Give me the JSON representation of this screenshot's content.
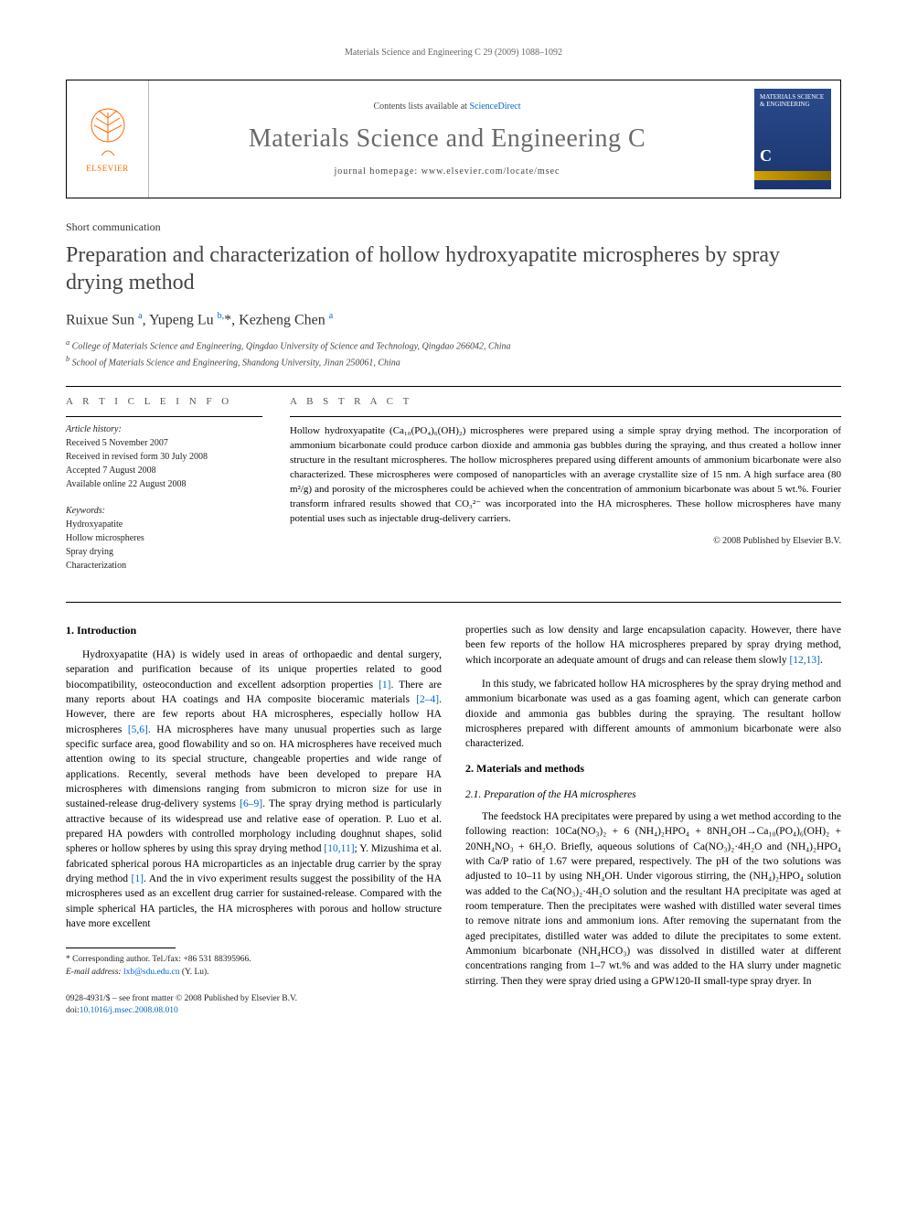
{
  "running_header": "Materials Science and Engineering C 29 (2009) 1088–1092",
  "masthead": {
    "contents_prefix": "Contents lists available at ",
    "contents_link": "ScienceDirect",
    "journal_name": "Materials Science and Engineering C",
    "homepage_prefix": "journal homepage: ",
    "homepage": "www.elsevier.com/locate/msec",
    "elsevier": "ELSEVIER",
    "cover_title": "MATERIALS SCIENCE & ENGINEERING",
    "cover_c": "C"
  },
  "article_type": "Short communication",
  "title": "Preparation and characterization of hollow hydroxyapatite microspheres by spray drying method",
  "authors_html": "Ruixue Sun <sup>a</sup>, Yupeng Lu <sup>b,</sup><span class='star'>*</span>, Kezheng Chen <sup>a</sup>",
  "affiliations": {
    "a": "College of Materials Science and Engineering, Qingdao University of Science and Technology, Qingdao 266042, China",
    "b": "School of Materials Science and Engineering, Shandong University, Jinan 250061, China"
  },
  "info": {
    "heading": "A R T I C L E   I N F O",
    "history_label": "Article history:",
    "received": "Received 5 November 2007",
    "revised": "Received in revised form 30 July 2008",
    "accepted": "Accepted 7 August 2008",
    "online": "Available online 22 August 2008",
    "keywords_label": "Keywords:",
    "kw1": "Hydroxyapatite",
    "kw2": "Hollow microspheres",
    "kw3": "Spray drying",
    "kw4": "Characterization"
  },
  "abstract": {
    "heading": "A B S T R A C T",
    "text": "Hollow hydroxyapatite (Ca₁₀(PO₄)₆(OH)₂) microspheres were prepared using a simple spray drying method. The incorporation of ammonium bicarbonate could produce carbon dioxide and ammonia gas bubbles during the spraying, and thus created a hollow inner structure in the resultant microspheres. The hollow microspheres prepared using different amounts of ammonium bicarbonate were also characterized. These microspheres were composed of nanoparticles with an average crystallite size of 15 nm. A high surface area (80 m²/g) and porosity of the microspheres could be achieved when the concentration of ammonium bicarbonate was about 5 wt.%. Fourier transform infrared results showed that CO₃²⁻ was incorporated into the HA microspheres. These hollow microspheres have many potential uses such as injectable drug-delivery carriers.",
    "copyright": "© 2008 Published by Elsevier B.V."
  },
  "body": {
    "h_intro": "1. Introduction",
    "p1": "Hydroxyapatite (HA) is widely used in areas of orthopaedic and dental surgery, separation and purification because of its unique properties related to good biocompatibility, osteoconduction and excellent adsorption properties [1]. There are many reports about HA coatings and HA composite bioceramic materials [2–4]. However, there are few reports about HA microspheres, especially hollow HA microspheres [5,6]. HA microspheres have many unusual properties such as large specific surface area, good flowability and so on. HA microspheres have received much attention owing to its special structure, changeable properties and wide range of applications. Recently, several methods have been developed to prepare HA microspheres with dimensions ranging from submicron to micron size for use in sustained-release drug-delivery systems [6–9]. The spray drying method is particularly attractive because of its widespread use and relative ease of operation. P. Luo et al. prepared HA powders with controlled morphology including doughnut shapes, solid spheres or hollow spheres by using this spray drying method [10,11]; Y. Mizushima et al. fabricated spherical porous HA microparticles as an injectable drug carrier by the spray drying method [1]. And the in vivo experiment results suggest the possibility of the HA microspheres used as an excellent drug carrier for sustained-release. Compared with the simple spherical HA particles, the HA microspheres with porous and hollow structure have more excellent",
    "p2": "properties such as low density and large encapsulation capacity. However, there have been few reports of the hollow HA microspheres prepared by spray drying method, which incorporate an adequate amount of drugs and can release them slowly [12,13].",
    "p3": "In this study, we fabricated hollow HA microspheres by the spray drying method and ammonium bicarbonate was used as a gas foaming agent, which can generate carbon dioxide and ammonia gas bubbles during the spraying. The resultant hollow microspheres prepared with different amounts of ammonium bicarbonate were also characterized.",
    "h_mm": "2. Materials and methods",
    "h_prep": "2.1. Preparation of the HA microspheres",
    "p4": "The feedstock HA precipitates were prepared by using a wet method according to the following reaction: 10Ca(NO₃)₂ + 6 (NH₄)₂HPO₄ + 8NH₄OH→Ca₁₀(PO₄)₆(OH)₂ + 20NH₄NO₃ + 6H₂O. Briefly, aqueous solutions of Ca(NO₃)₂·4H₂O and (NH₄)₂HPO₄ with Ca/P ratio of 1.67 were prepared, respectively. The pH of the two solutions was adjusted to 10–11 by using NH₄OH. Under vigorous stirring, the (NH₄)₂HPO₄ solution was added to the Ca(NO₃)₂·4H₂O solution and the resultant HA precipitate was aged at room temperature. Then the precipitates were washed with distilled water several times to remove nitrate ions and ammonium ions. After removing the supernatant from the aged precipitates, distilled water was added to dilute the precipitates to some extent. Ammonium bicarbonate (NH₄HCO₃) was dissolved in distilled water at different concentrations ranging from 1–7 wt.% and was added to the HA slurry under magnetic stirring. Then they were spray dried using a GPW120-II small-type spray dryer. In"
  },
  "footnote": {
    "corr": "* Corresponding author. Tel./fax: +86 531 88395966.",
    "email_label": "E-mail address: ",
    "email": "lxb@sdu.edu.cn",
    "email_suffix": " (Y. Lu)."
  },
  "bottom": {
    "issn": "0928-4931/$ – see front matter © 2008 Published by Elsevier B.V.",
    "doi_label": "doi:",
    "doi": "10.1016/j.msec.2008.08.010"
  },
  "colors": {
    "link": "#0066cc",
    "elsevier_orange": "#ff6a00",
    "title_gray": "#454545",
    "journal_gray": "#6a6a6a"
  }
}
